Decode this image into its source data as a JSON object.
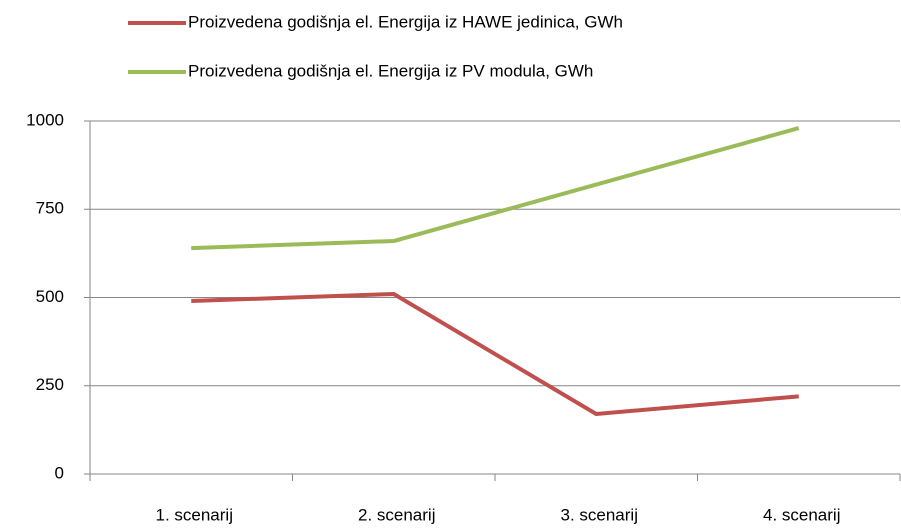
{
  "chart_data": {
    "type": "line",
    "categories": [
      "1. scenarij",
      "2. scenarij",
      "3. scenarij",
      "4. scenarij"
    ],
    "series": [
      {
        "name": "Proizvedena godišnja el. Energija iz HAWE jedinica, GWh",
        "color": "#c0504d",
        "values": [
          490,
          510,
          170,
          220
        ]
      },
      {
        "name": "Proizvedena godišnja el. Energija iz PV modula, GWh",
        "color": "#9bbb59",
        "values": [
          640,
          660,
          820,
          980
        ]
      }
    ],
    "ylim": [
      0,
      1000
    ],
    "yticks": [
      0,
      250,
      500,
      750,
      1000
    ],
    "grid": true,
    "legend": "top"
  }
}
